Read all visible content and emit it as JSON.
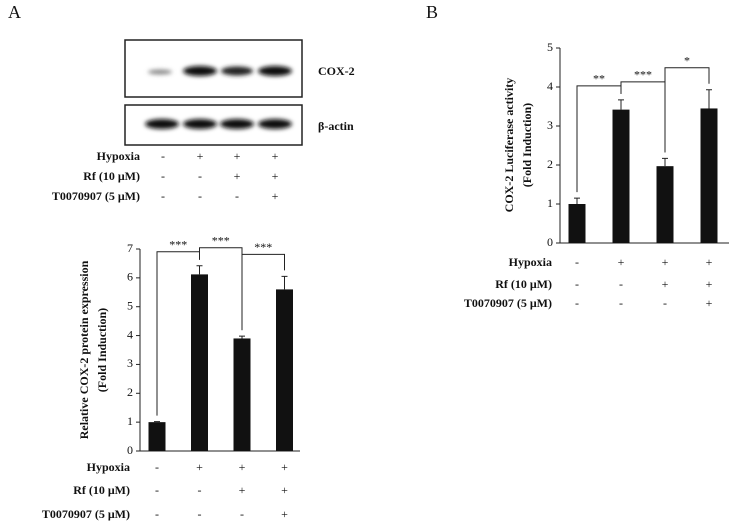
{
  "panel_labels": [
    "A",
    "B"
  ],
  "blot": {
    "labels": [
      "COX-2",
      "β-actin"
    ],
    "conditions": [
      {
        "label": "Hypoxia",
        "signs": [
          "-",
          "+",
          "+",
          "+"
        ]
      },
      {
        "label": "Rf (10 μM)",
        "signs": [
          "-",
          "-",
          "+",
          "+"
        ]
      },
      {
        "label": "T0070907 (5 μM)",
        "signs": [
          "-",
          "-",
          "-",
          "+"
        ]
      }
    ]
  },
  "chart_data": [
    {
      "type": "bar",
      "ylabel": [
        "Relative COX-2 protein expression",
        "(Fold Induction)"
      ],
      "values": [
        1.0,
        6.12,
        3.9,
        5.6
      ],
      "errors": [
        0.02,
        0.3,
        0.08,
        0.45
      ],
      "color": "#111111",
      "ylim": [
        0,
        7
      ],
      "yticks": [
        0,
        1,
        2,
        3,
        4,
        5,
        6,
        7
      ],
      "annotations": [
        "***",
        "***",
        "***"
      ],
      "conditions": [
        {
          "label": "Hypoxia",
          "signs": [
            "-",
            "+",
            "+",
            "+"
          ]
        },
        {
          "label": "Rf (10 μM)",
          "signs": [
            "-",
            "-",
            "+",
            "+"
          ]
        },
        {
          "label": "T0070907 (5 μM)",
          "signs": [
            "-",
            "-",
            "-",
            "+"
          ]
        }
      ]
    },
    {
      "type": "bar",
      "ylabel": [
        "COX-2 Luciferase activity",
        "(Fold Induction)"
      ],
      "values": [
        1.0,
        3.42,
        1.97,
        3.45
      ],
      "errors": [
        0.15,
        0.25,
        0.2,
        0.48
      ],
      "color": "#111111",
      "ylim": [
        0,
        5
      ],
      "yticks": [
        0,
        1,
        2,
        3,
        4,
        5
      ],
      "annotations": [
        "**",
        "***",
        "*"
      ],
      "conditions": [
        {
          "label": "Hypoxia",
          "signs": [
            "-",
            "+",
            "+",
            "+"
          ]
        },
        {
          "label": "Rf (10 μM)",
          "signs": [
            "-",
            "-",
            "+",
            "+"
          ]
        },
        {
          "label": "T0070907 (5 μM)",
          "signs": [
            "-",
            "-",
            "-",
            "+"
          ]
        }
      ]
    }
  ]
}
